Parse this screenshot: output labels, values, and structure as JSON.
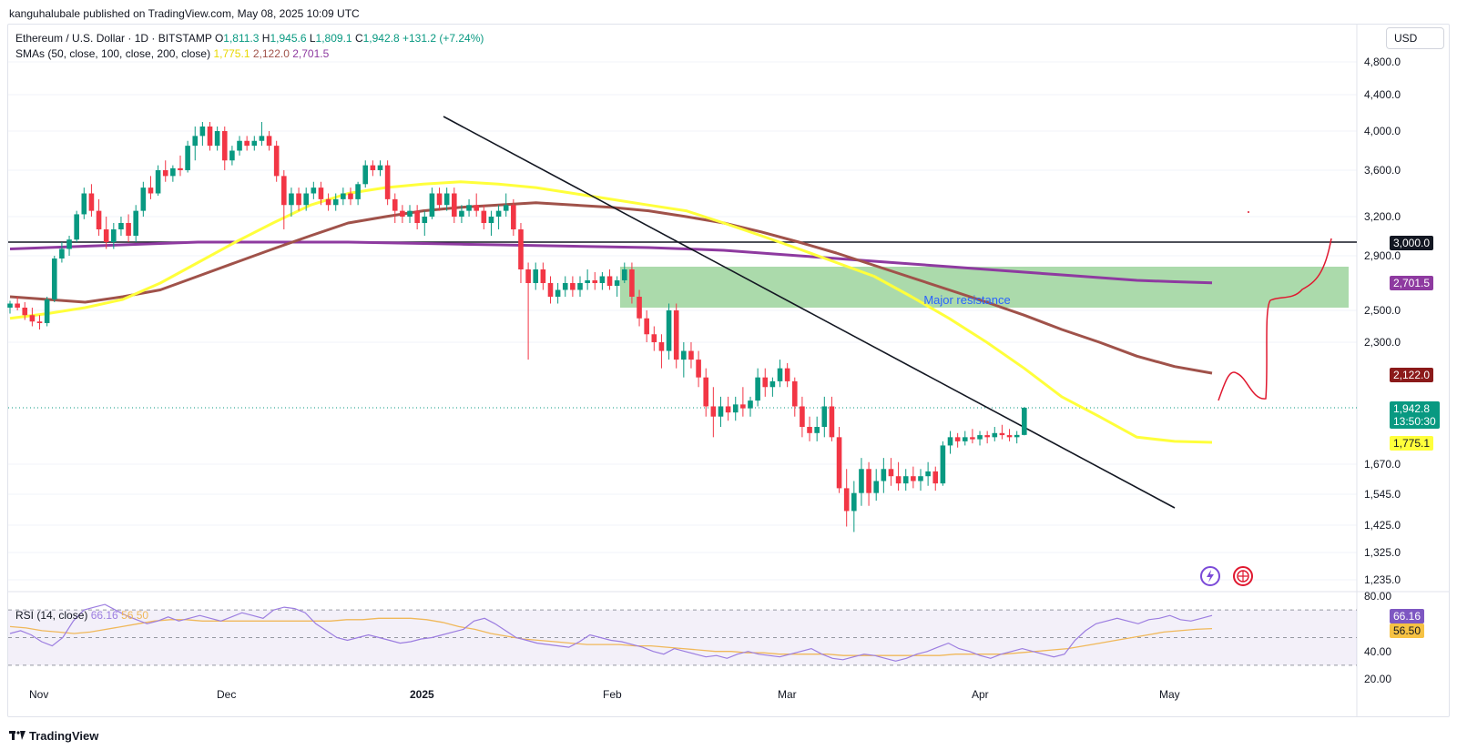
{
  "publisher_line": "kanguhalubale published on TradingView.com, May 08, 2025 10:09 UTC",
  "legend": {
    "symbol": "Ethereum / U.S. Dollar · 1D · BITSTAMP",
    "o_key": "O",
    "o_val": "1,811.3",
    "h_key": "H",
    "h_val": "1,945.6",
    "l_key": "L",
    "l_val": "1,809.1",
    "c_key": "C",
    "c_val": "1,942.8",
    "change": "+131.2 (+7.24%)",
    "sma_label": "SMAs (50, close, 100, close, 200, close)",
    "sma50": "1,775.1",
    "sma100": "2,122.0",
    "sma200": "2,701.5",
    "rsi_label": "RSI (14, close)",
    "rsi_val": "66.16",
    "rsi_ma": "56.50"
  },
  "currency": "USD",
  "footer": "TradingView",
  "annotation": "Major resistance",
  "price_tags": {
    "level": "3,000.0",
    "sma200": "2,701.5",
    "sma100": "2,122.0",
    "last": "1,942.8",
    "countdown": "13:50:30",
    "sma50": "1,775.1",
    "rsi": "66.16",
    "rsi_ma": "56.50"
  },
  "colors": {
    "up": "#089981",
    "down": "#f23645",
    "sma50": "#ffff3b",
    "sma100": "#a0524a",
    "sma200": "#8e3aa0",
    "resistance_zone": "#8fce8f",
    "annotation": "#2962ff",
    "rsi_line": "#9c7de0",
    "rsi_ma": "#f0b85a",
    "forecast": "#e0182f"
  },
  "chart_data": {
    "type": "candlestick",
    "title": "Ethereum / U.S. Dollar · 1D · BITSTAMP",
    "y_axis_labels": [
      "4,800.0",
      "4,400.0",
      "4,000.0",
      "3,600.0",
      "3,200.0",
      "2,900.0",
      "2,500.0",
      "2,300.0",
      "1,670.0",
      "1,545.0",
      "1,425.0",
      "1,325.0",
      "1,235.0"
    ],
    "x_axis_labels": [
      "Nov",
      "Dec",
      "2025",
      "Feb",
      "Mar",
      "Apr",
      "May"
    ],
    "rsi_axis_labels": [
      "80.00",
      "40.00",
      "20.00"
    ],
    "horizontal_level": 3000,
    "resistance_zone": [
      2520,
      2820
    ],
    "candles": [
      [
        2520,
        2570,
        2480,
        2550
      ],
      [
        2550,
        2600,
        2500,
        2520
      ],
      [
        2520,
        2560,
        2440,
        2470
      ],
      [
        2470,
        2520,
        2400,
        2430
      ],
      [
        2430,
        2470,
        2380,
        2420
      ],
      [
        2420,
        2600,
        2400,
        2580
      ],
      [
        2580,
        2900,
        2560,
        2880
      ],
      [
        2880,
        3000,
        2850,
        2950
      ],
      [
        2950,
        3050,
        2900,
        3020
      ],
      [
        3020,
        3250,
        3000,
        3220
      ],
      [
        3220,
        3450,
        3180,
        3400
      ],
      [
        3400,
        3480,
        3200,
        3250
      ],
      [
        3250,
        3350,
        3050,
        3100
      ],
      [
        3100,
        3200,
        2950,
        3000
      ],
      [
        3000,
        3150,
        2950,
        3100
      ],
      [
        3100,
        3200,
        3050,
        3150
      ],
      [
        3150,
        3220,
        3000,
        3050
      ],
      [
        3050,
        3300,
        3000,
        3250
      ],
      [
        3250,
        3500,
        3200,
        3450
      ],
      [
        3450,
        3550,
        3350,
        3400
      ],
      [
        3400,
        3650,
        3380,
        3600
      ],
      [
        3600,
        3700,
        3500,
        3550
      ],
      [
        3550,
        3650,
        3500,
        3620
      ],
      [
        3620,
        3750,
        3550,
        3600
      ],
      [
        3600,
        3900,
        3580,
        3850
      ],
      [
        3850,
        4050,
        3700,
        3950
      ],
      [
        3950,
        4100,
        3850,
        4050
      ],
      [
        4050,
        4100,
        3800,
        3850
      ],
      [
        3850,
        4050,
        3800,
        4000
      ],
      [
        4000,
        4050,
        3600,
        3700
      ],
      [
        3700,
        3850,
        3650,
        3800
      ],
      [
        3800,
        3950,
        3750,
        3900
      ],
      [
        3900,
        3950,
        3800,
        3850
      ],
      [
        3850,
        3950,
        3800,
        3900
      ],
      [
        3900,
        4100,
        3850,
        3950
      ],
      [
        3950,
        4000,
        3800,
        3850
      ],
      [
        3850,
        3900,
        3500,
        3550
      ],
      [
        3550,
        3600,
        3100,
        3300
      ],
      [
        3300,
        3450,
        3200,
        3400
      ],
      [
        3400,
        3450,
        3250,
        3300
      ],
      [
        3300,
        3450,
        3250,
        3400
      ],
      [
        3400,
        3500,
        3350,
        3450
      ],
      [
        3450,
        3500,
        3300,
        3350
      ],
      [
        3350,
        3400,
        3250,
        3300
      ],
      [
        3300,
        3400,
        3250,
        3350
      ],
      [
        3350,
        3450,
        3300,
        3400
      ],
      [
        3400,
        3450,
        3300,
        3350
      ],
      [
        3350,
        3500,
        3300,
        3480
      ],
      [
        3480,
        3700,
        3450,
        3650
      ],
      [
        3650,
        3700,
        3550,
        3600
      ],
      [
        3600,
        3700,
        3550,
        3650
      ],
      [
        3650,
        3700,
        3300,
        3350
      ],
      [
        3350,
        3400,
        3150,
        3250
      ],
      [
        3250,
        3300,
        3150,
        3200
      ],
      [
        3200,
        3300,
        3150,
        3250
      ],
      [
        3250,
        3300,
        3100,
        3150
      ],
      [
        3150,
        3250,
        3050,
        3200
      ],
      [
        3200,
        3450,
        3180,
        3400
      ],
      [
        3400,
        3450,
        3250,
        3300
      ],
      [
        3300,
        3450,
        3250,
        3400
      ],
      [
        3400,
        3450,
        3150,
        3200
      ],
      [
        3200,
        3300,
        3150,
        3250
      ],
      [
        3250,
        3350,
        3200,
        3300
      ],
      [
        3300,
        3400,
        3200,
        3250
      ],
      [
        3250,
        3300,
        3100,
        3150
      ],
      [
        3150,
        3250,
        3050,
        3200
      ],
      [
        3200,
        3300,
        3100,
        3250
      ],
      [
        3250,
        3400,
        3200,
        3300
      ],
      [
        3300,
        3350,
        3050,
        3100
      ],
      [
        3100,
        3150,
        2700,
        2800
      ],
      [
        2800,
        2850,
        2200,
        2700
      ],
      [
        2700,
        2850,
        2650,
        2800
      ],
      [
        2800,
        2850,
        2650,
        2700
      ],
      [
        2700,
        2750,
        2550,
        2600
      ],
      [
        2600,
        2700,
        2550,
        2650
      ],
      [
        2650,
        2750,
        2600,
        2700
      ],
      [
        2700,
        2750,
        2600,
        2650
      ],
      [
        2650,
        2750,
        2600,
        2700
      ],
      [
        2700,
        2800,
        2650,
        2720
      ],
      [
        2720,
        2780,
        2650,
        2700
      ],
      [
        2700,
        2780,
        2650,
        2750
      ],
      [
        2750,
        2800,
        2650,
        2680
      ],
      [
        2680,
        2750,
        2600,
        2720
      ],
      [
        2720,
        2850,
        2700,
        2800
      ],
      [
        2800,
        2850,
        2550,
        2600
      ],
      [
        2600,
        2650,
        2400,
        2450
      ],
      [
        2450,
        2500,
        2300,
        2350
      ],
      [
        2350,
        2400,
        2250,
        2300
      ],
      [
        2300,
        2350,
        2150,
        2250
      ],
      [
        2250,
        2550,
        2200,
        2500
      ],
      [
        2500,
        2550,
        2150,
        2200
      ],
      [
        2200,
        2300,
        2100,
        2250
      ],
      [
        2250,
        2300,
        2150,
        2200
      ],
      [
        2200,
        2250,
        2050,
        2100
      ],
      [
        2100,
        2150,
        1900,
        1950
      ],
      [
        1950,
        2050,
        1800,
        1900
      ],
      [
        1900,
        2000,
        1850,
        1950
      ],
      [
        1950,
        2000,
        1880,
        1920
      ],
      [
        1920,
        2000,
        1880,
        1960
      ],
      [
        1960,
        2050,
        1900,
        1940
      ],
      [
        1940,
        2000,
        1900,
        1980
      ],
      [
        1980,
        2150,
        1950,
        2100
      ],
      [
        2100,
        2150,
        2000,
        2050
      ],
      [
        2050,
        2100,
        2000,
        2080
      ],
      [
        2080,
        2200,
        2050,
        2150
      ],
      [
        2150,
        2180,
        2050,
        2080
      ],
      [
        2080,
        2100,
        1900,
        1950
      ],
      [
        1950,
        2000,
        1800,
        1850
      ],
      [
        1850,
        1900,
        1780,
        1820
      ],
      [
        1820,
        1900,
        1780,
        1850
      ],
      [
        1850,
        2000,
        1800,
        1950
      ],
      [
        1950,
        2000,
        1780,
        1800
      ],
      [
        1800,
        1850,
        1550,
        1570
      ],
      [
        1570,
        1650,
        1420,
        1480
      ],
      [
        1480,
        1600,
        1400,
        1550
      ],
      [
        1550,
        1700,
        1500,
        1650
      ],
      [
        1650,
        1680,
        1500,
        1550
      ],
      [
        1550,
        1650,
        1520,
        1600
      ],
      [
        1600,
        1700,
        1550,
        1650
      ],
      [
        1650,
        1700,
        1580,
        1620
      ],
      [
        1620,
        1680,
        1560,
        1590
      ],
      [
        1590,
        1650,
        1560,
        1620
      ],
      [
        1620,
        1660,
        1570,
        1600
      ],
      [
        1600,
        1650,
        1560,
        1620
      ],
      [
        1620,
        1680,
        1580,
        1640
      ],
      [
        1640,
        1660,
        1560,
        1590
      ],
      [
        1590,
        1780,
        1580,
        1760
      ],
      [
        1760,
        1830,
        1720,
        1800
      ],
      [
        1800,
        1820,
        1750,
        1780
      ],
      [
        1780,
        1830,
        1760,
        1800
      ],
      [
        1800,
        1840,
        1770,
        1790
      ],
      [
        1790,
        1830,
        1760,
        1810
      ],
      [
        1810,
        1830,
        1770,
        1800
      ],
      [
        1800,
        1850,
        1780,
        1820
      ],
      [
        1820,
        1860,
        1790,
        1810
      ],
      [
        1810,
        1840,
        1780,
        1800
      ],
      [
        1800,
        1830,
        1770,
        1811
      ],
      [
        1811,
        1946,
        1809,
        1943
      ]
    ],
    "series": [
      {
        "name": "SMA 50",
        "values": [
          2450,
          2480,
          2520,
          2580,
          2700,
          2850,
          3000,
          3150,
          3300,
          3400,
          3450,
          3480,
          3500,
          3480,
          3450,
          3400,
          3350,
          3300,
          3250,
          3150,
          3050,
          2950,
          2850,
          2750,
          2600,
          2450,
          2300,
          2150,
          2000,
          1900,
          1800,
          1780,
          1775
        ]
      },
      {
        "name": "SMA 100",
        "values": [
          2600,
          2580,
          2560,
          2600,
          2650,
          2750,
          2850,
          2950,
          3050,
          3150,
          3200,
          3250,
          3280,
          3300,
          3320,
          3300,
          3280,
          3250,
          3200,
          3150,
          3080,
          3000,
          2920,
          2830,
          2740,
          2650,
          2560,
          2470,
          2380,
          2300,
          2220,
          2160,
          2122
        ]
      },
      {
        "name": "SMA 200",
        "values": [
          2950,
          2960,
          2970,
          2980,
          2990,
          3000,
          3000,
          3000,
          3000,
          3000,
          2995,
          2990,
          2985,
          2980,
          2975,
          2970,
          2965,
          2960,
          2950,
          2940,
          2920,
          2900,
          2880,
          2860,
          2840,
          2820,
          2800,
          2780,
          2760,
          2740,
          2720,
          2710,
          2701.5
        ]
      }
    ],
    "rsi": {
      "values": [
        53,
        55,
        52,
        47,
        44,
        50,
        62,
        70,
        72,
        74,
        70,
        66,
        63,
        60,
        62,
        65,
        62,
        64,
        66,
        64,
        62,
        65,
        68,
        66,
        64,
        70,
        72,
        71,
        68,
        60,
        55,
        50,
        48,
        50,
        52,
        50,
        48,
        46,
        47,
        49,
        50,
        52,
        54,
        56,
        62,
        64,
        60,
        55,
        50,
        48,
        46,
        45,
        44,
        43,
        47,
        52,
        50,
        48,
        47,
        45,
        43,
        40,
        38,
        42,
        40,
        38,
        36,
        37,
        35,
        38,
        40,
        38,
        37,
        36,
        38,
        40,
        42,
        38,
        35,
        34,
        36,
        38,
        37,
        35,
        33,
        35,
        38,
        40,
        43,
        46,
        42,
        40,
        37,
        35,
        38,
        40,
        42,
        40,
        38,
        36,
        38,
        48,
        55,
        60,
        62,
        64,
        62,
        60,
        63,
        64,
        66,
        63,
        62,
        64,
        66
      ],
      "ma_values": [
        58,
        57,
        55,
        54,
        53,
        54,
        56,
        58,
        60,
        62,
        63,
        63,
        62,
        62,
        62,
        62,
        62,
        62,
        62,
        62,
        62,
        63,
        63,
        64,
        64,
        64,
        63,
        61,
        58,
        56,
        53,
        51,
        49,
        48,
        47,
        46,
        45,
        45,
        45,
        44,
        44,
        43,
        42,
        41,
        40,
        40,
        39,
        39,
        38,
        38,
        38,
        38,
        37,
        37,
        37,
        37,
        37,
        37,
        37,
        38,
        38,
        38,
        38,
        39,
        40,
        41,
        42,
        44,
        46,
        48,
        50,
        52,
        54,
        55,
        56,
        56.5
      ],
      "upper": 70,
      "lower": 30
    }
  }
}
